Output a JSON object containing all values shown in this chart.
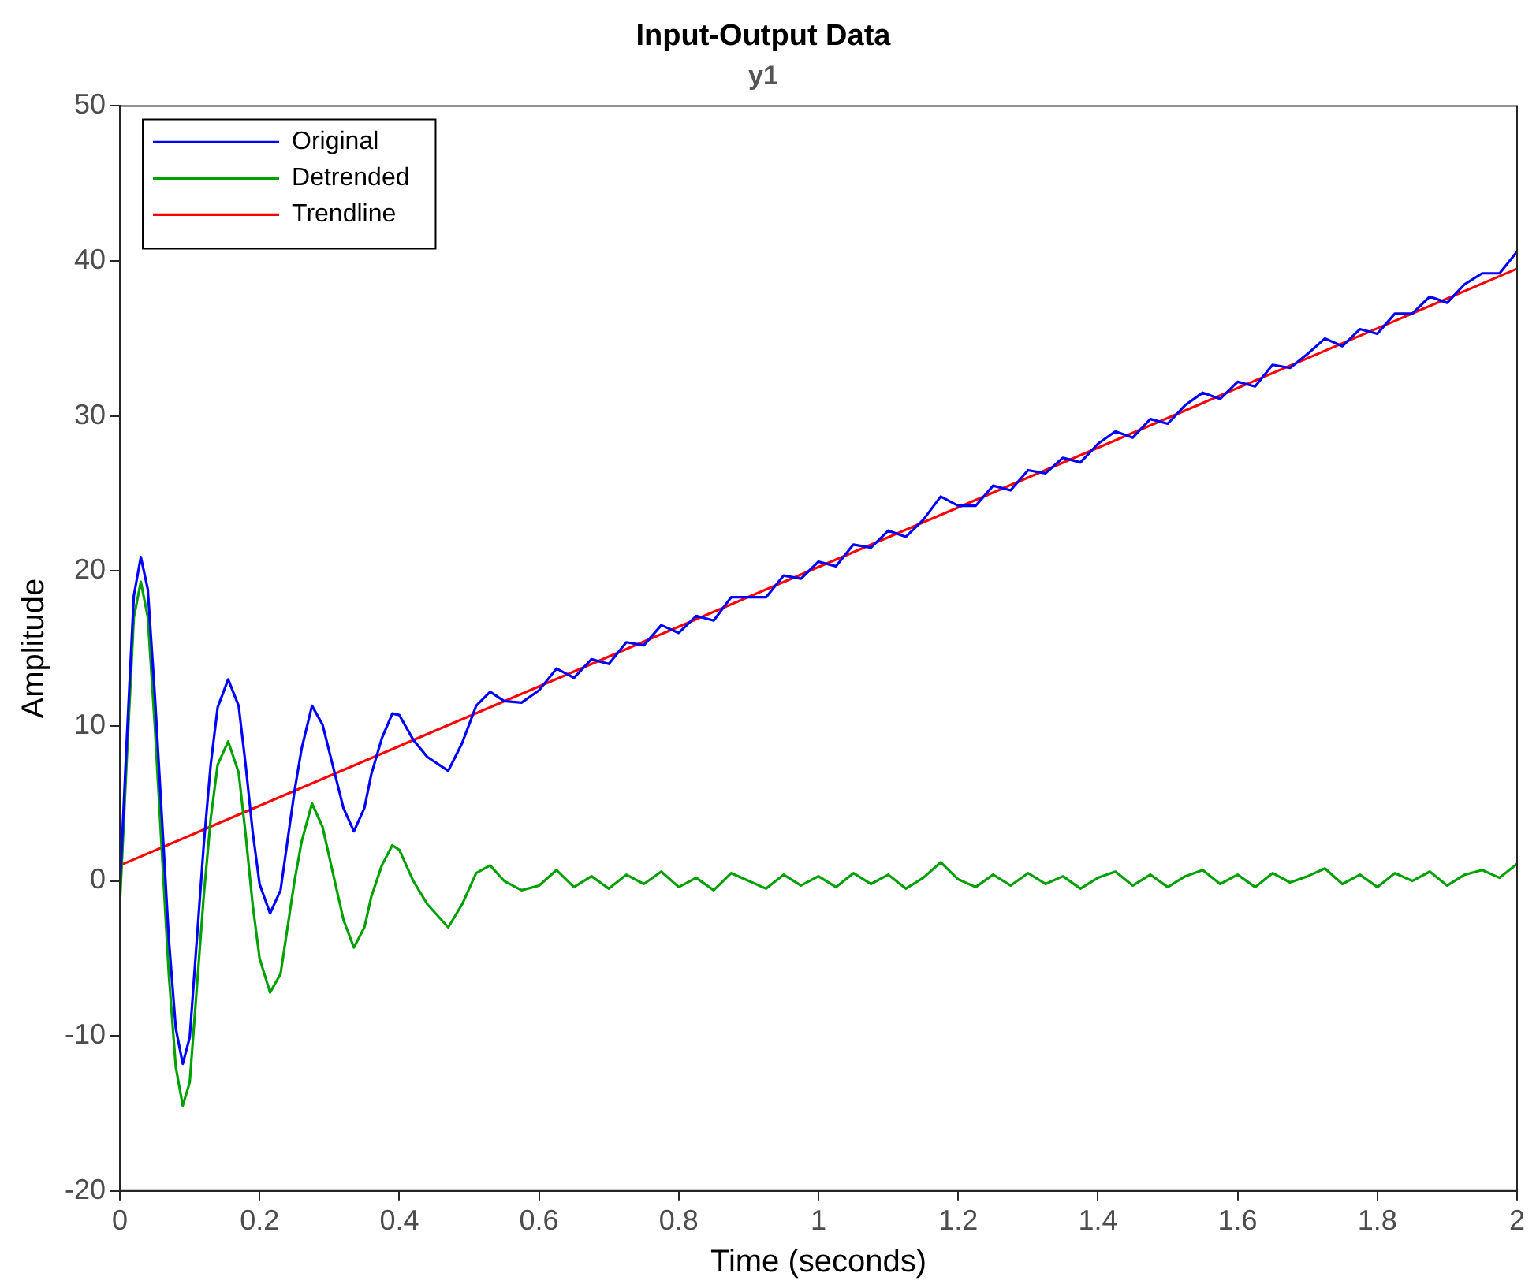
{
  "chart_data": {
    "type": "line",
    "title": "Input-Output Data",
    "subtitle": "y1",
    "xlabel": "Time (seconds)",
    "ylabel": "Amplitude",
    "x": [
      0,
      0.01,
      0.02,
      0.03,
      0.04,
      0.05,
      0.06,
      0.07,
      0.08,
      0.09,
      0.1,
      0.11,
      0.12,
      0.13,
      0.14,
      0.155,
      0.17,
      0.18,
      0.19,
      0.2,
      0.215,
      0.23,
      0.24,
      0.25,
      0.26,
      0.275,
      0.29,
      0.3,
      0.31,
      0.32,
      0.335,
      0.35,
      0.36,
      0.375,
      0.39,
      0.4,
      0.42,
      0.44,
      0.47,
      0.49,
      0.51,
      0.53,
      0.55,
      0.575,
      0.6,
      0.625,
      0.65,
      0.675,
      0.7,
      0.725,
      0.75,
      0.775,
      0.8,
      0.825,
      0.85,
      0.875,
      0.9,
      0.925,
      0.95,
      0.975,
      1,
      1.025,
      1.05,
      1.075,
      1.1,
      1.125,
      1.15,
      1.175,
      1.2,
      1.225,
      1.25,
      1.275,
      1.3,
      1.325,
      1.35,
      1.375,
      1.4,
      1.425,
      1.45,
      1.475,
      1.5,
      1.525,
      1.55,
      1.575,
      1.6,
      1.625,
      1.65,
      1.675,
      1.7,
      1.725,
      1.75,
      1.775,
      1.8,
      1.825,
      1.85,
      1.875,
      1.9,
      1.925,
      1.95,
      1.975,
      2
    ],
    "series": [
      {
        "name": "Original",
        "color": "#0000ff",
        "values": [
          -0.5,
          9.2,
          18.4,
          20.9,
          18.8,
          12,
          4.2,
          -3.7,
          -9.5,
          -11.8,
          -10.1,
          -3.9,
          2.3,
          7.5,
          11.2,
          13,
          11.3,
          7.5,
          3.2,
          -0.2,
          -2.1,
          -0.6,
          2.6,
          5.8,
          8.5,
          11.3,
          10.1,
          8.3,
          6.5,
          4.7,
          3.2,
          4.7,
          6.9,
          9.2,
          10.8,
          10.7,
          9.1,
          8,
          7.1,
          8.9,
          11.3,
          12.2,
          11.6,
          11.5,
          12.3,
          13.7,
          13.1,
          14.3,
          14,
          15.4,
          15.2,
          16.5,
          16,
          17.1,
          16.8,
          18.3,
          18.3,
          18.3,
          19.7,
          19.5,
          20.6,
          20.3,
          21.7,
          21.5,
          22.6,
          22.2,
          23.3,
          24.8,
          24.2,
          24.2,
          25.5,
          25.2,
          26.5,
          26.3,
          27.3,
          27,
          28.2,
          29,
          28.6,
          29.8,
          29.5,
          30.7,
          31.5,
          31.1,
          32.2,
          31.9,
          33.3,
          33.1,
          34,
          35,
          34.5,
          35.6,
          35.3,
          36.6,
          36.6,
          37.7,
          37.3,
          38.5,
          39.2,
          39.2,
          40.6
        ]
      },
      {
        "name": "Detrended",
        "color": "#00a000",
        "values": [
          -1.5,
          8,
          17,
          19.3,
          17,
          10,
          2,
          -6,
          -12,
          -14.5,
          -13,
          -7,
          -1,
          4,
          7.5,
          9,
          7,
          3,
          -1.5,
          -5,
          -7.2,
          -6,
          -3,
          0,
          2.5,
          5,
          3.5,
          1.5,
          -0.5,
          -2.5,
          -4.3,
          -3,
          -1,
          1,
          2.3,
          2,
          0,
          -1.5,
          -3,
          -1.5,
          0.5,
          1,
          0,
          -0.6,
          -0.3,
          0.7,
          -0.4,
          0.3,
          -0.5,
          0.4,
          -0.2,
          0.6,
          -0.4,
          0.2,
          -0.6,
          0.5,
          0,
          -0.5,
          0.4,
          -0.3,
          0.3,
          -0.4,
          0.5,
          -0.2,
          0.4,
          -0.5,
          0.2,
          1.2,
          0.1,
          -0.4,
          0.4,
          -0.3,
          0.5,
          -0.2,
          0.3,
          -0.5,
          0.2,
          0.6,
          -0.3,
          0.4,
          -0.4,
          0.3,
          0.7,
          -0.2,
          0.4,
          -0.4,
          0.5,
          -0.1,
          0.3,
          0.8,
          -0.2,
          0.4,
          -0.4,
          0.5,
          0,
          0.6,
          -0.3,
          0.4,
          0.7,
          0.2,
          1.1
        ]
      },
      {
        "name": "Trendline",
        "color": "#ff0000",
        "x": [
          0,
          2
        ],
        "values": [
          1,
          39.5
        ]
      }
    ],
    "xlim": [
      0,
      2
    ],
    "xticks": [
      0,
      0.2,
      0.4,
      0.6,
      0.8,
      1,
      1.2,
      1.4,
      1.6,
      1.8,
      2
    ],
    "ylim": [
      -20,
      50
    ],
    "yticks": [
      -20,
      -10,
      0,
      10,
      20,
      30,
      40,
      50
    ],
    "grid": false,
    "legend": "top left",
    "marker": "none",
    "line_style": "solid"
  }
}
